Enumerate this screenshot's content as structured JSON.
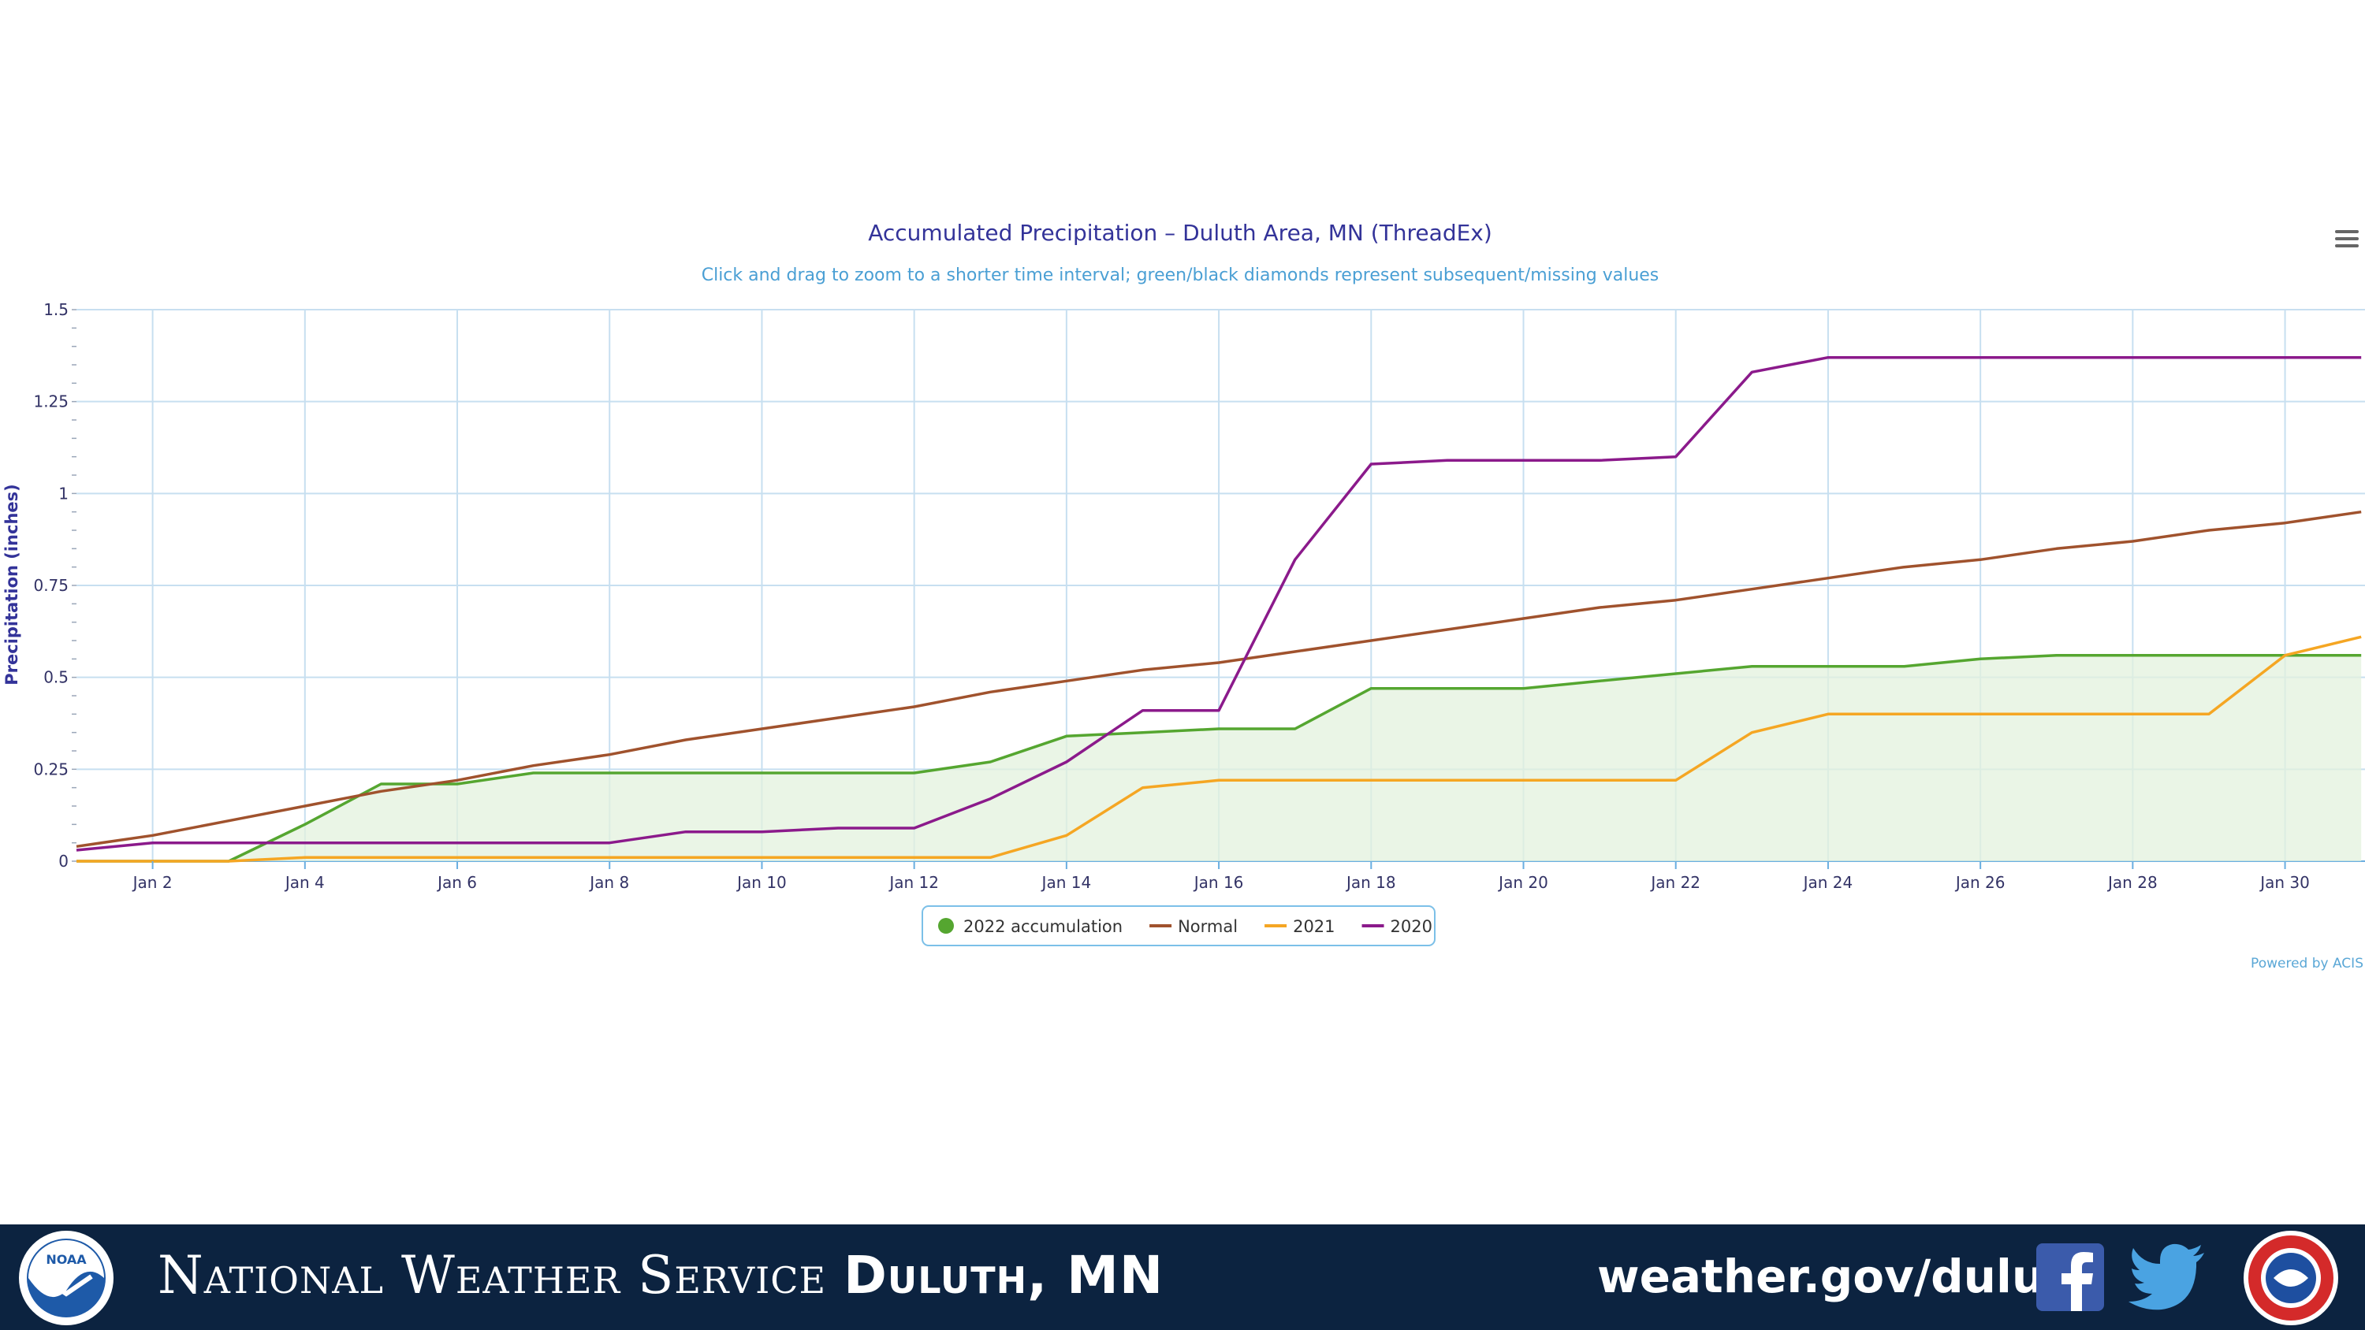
{
  "chart_data": {
    "type": "line",
    "title": "Accumulated Precipitation – Duluth Area, MN (ThreadEx)",
    "subtitle": "Click and drag to zoom to a shorter time interval; green/black diamonds represent subsequent/missing values",
    "xlabel": "",
    "ylabel": "Precipitation (inches)",
    "x": [
      1,
      2,
      3,
      4,
      5,
      6,
      7,
      8,
      9,
      10,
      11,
      12,
      13,
      14,
      15,
      16,
      17,
      18,
      19,
      20,
      21,
      22,
      23,
      24,
      25,
      26,
      27,
      28,
      29,
      30,
      31
    ],
    "xlim": [
      1,
      31
    ],
    "ylim": [
      0,
      1.5
    ],
    "x_ticks": [
      2,
      4,
      6,
      8,
      10,
      12,
      14,
      16,
      18,
      20,
      22,
      24,
      26,
      28,
      30
    ],
    "x_tick_labels": [
      "Jan 2",
      "Jan 4",
      "Jan 6",
      "Jan 8",
      "Jan 10",
      "Jan 12",
      "Jan 14",
      "Jan 16",
      "Jan 18",
      "Jan 20",
      "Jan 22",
      "Jan 24",
      "Jan 26",
      "Jan 28",
      "Jan 30"
    ],
    "y_ticks": [
      0,
      0.25,
      0.5,
      0.75,
      1,
      1.25,
      1.5
    ],
    "y_tick_labels": [
      "0",
      "0.25",
      "0.5",
      "0.75",
      "1",
      "1.25",
      "1.5"
    ],
    "grid": true,
    "legend_position": "bottom-center",
    "series": [
      {
        "name": "2022 accumulation",
        "kind": "area",
        "color": "#55a630",
        "fill": "#e3f1dd",
        "values": [
          0,
          0,
          0,
          0.1,
          0.21,
          0.21,
          0.24,
          0.24,
          0.24,
          0.24,
          0.24,
          0.24,
          0.27,
          0.34,
          0.35,
          0.36,
          0.36,
          0.47,
          0.47,
          0.47,
          0.49,
          0.51,
          0.53,
          0.53,
          0.53,
          0.55,
          0.56,
          0.56,
          0.56,
          0.56,
          0.56
        ]
      },
      {
        "name": "Normal",
        "kind": "line",
        "color": "#a0522d",
        "values": [
          0.04,
          0.07,
          0.11,
          0.15,
          0.19,
          0.22,
          0.26,
          0.29,
          0.33,
          0.36,
          0.39,
          0.42,
          0.46,
          0.49,
          0.52,
          0.54,
          0.57,
          0.6,
          0.63,
          0.66,
          0.69,
          0.71,
          0.74,
          0.77,
          0.8,
          0.82,
          0.85,
          0.87,
          0.9,
          0.92,
          0.95
        ]
      },
      {
        "name": "2021",
        "kind": "line",
        "color": "#f5a623",
        "values": [
          0,
          0,
          0,
          0.01,
          0.01,
          0.01,
          0.01,
          0.01,
          0.01,
          0.01,
          0.01,
          0.01,
          0.01,
          0.07,
          0.2,
          0.22,
          0.22,
          0.22,
          0.22,
          0.22,
          0.22,
          0.22,
          0.35,
          0.4,
          0.4,
          0.4,
          0.4,
          0.4,
          0.4,
          0.56,
          0.61
        ]
      },
      {
        "name": "2020",
        "kind": "line",
        "color": "#8b1a8b",
        "values": [
          0.03,
          0.05,
          0.05,
          0.05,
          0.05,
          0.05,
          0.05,
          0.05,
          0.08,
          0.08,
          0.09,
          0.09,
          0.17,
          0.27,
          0.41,
          0.41,
          0.82,
          1.08,
          1.09,
          1.09,
          1.09,
          1.1,
          1.33,
          1.37,
          1.37,
          1.37,
          1.37,
          1.37,
          1.37,
          1.37,
          1.37
        ]
      }
    ],
    "credit": "Powered by ACIS"
  },
  "footer": {
    "org_prefix": "National Weather Service",
    "org_office": "Duluth, MN",
    "url": "weather.gov/duluth",
    "noaa_logo_text": "NOAA"
  },
  "icons": {
    "menu": "hamburger-menu-icon",
    "facebook": "facebook-icon",
    "twitter": "twitter-icon",
    "nws": "nws-logo-icon"
  }
}
